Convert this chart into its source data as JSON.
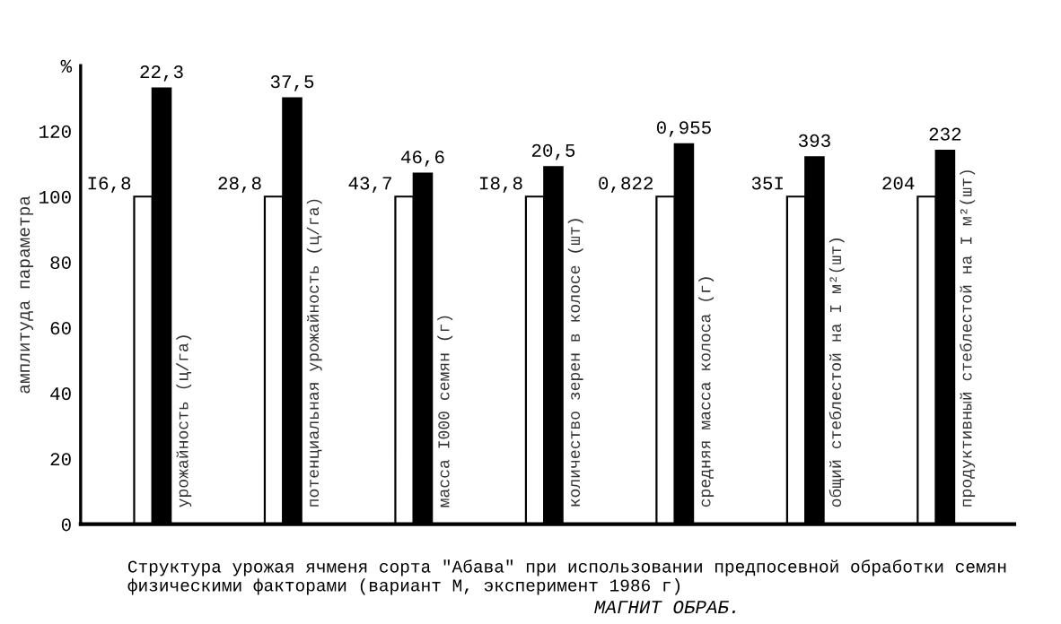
{
  "chart_data": {
    "type": "bar",
    "ylabel": "амплитуда параметра",
    "categories": [
      "урожайность (ц/га)",
      "потенциальная урожайность (ц/га)",
      "масса I000 семян (г)",
      "количество зерен в колосе (шт)",
      "средняя масса колоса (г)",
      "общий стеблестой на I м²(шт)",
      "продуктивный стеблестой на I м²(шт)"
    ],
    "series": [
      {
        "color": "#ffffff",
        "values": [
          100,
          100,
          100,
          100,
          100,
          100,
          100
        ]
      },
      {
        "color": "#000000",
        "values": [
          133,
          130,
          107,
          109,
          116,
          112,
          114
        ]
      }
    ],
    "ylim": [
      0,
      140
    ],
    "yticks": [
      0,
      20,
      40,
      60,
      80,
      100,
      120,
      {
        "value": 140,
        "label": "%"
      }
    ],
    "tick_labels": "y",
    "grid": false,
    "annotations": [
      "Структура урожая ячменя сорта \"Абава\" при использовании предпосевной обработки семян физическими факторами (вариант М, эксперимент 1986 г)",
      "МАГНИТ ОБРАБ.",
      "I6,8",
      "22,3",
      "28,8",
      "37,5",
      "43,7",
      "46,6",
      "I8,8",
      "20,5",
      "0,822",
      "0,955",
      "35I",
      "393",
      "204",
      "232"
    ]
  }
}
